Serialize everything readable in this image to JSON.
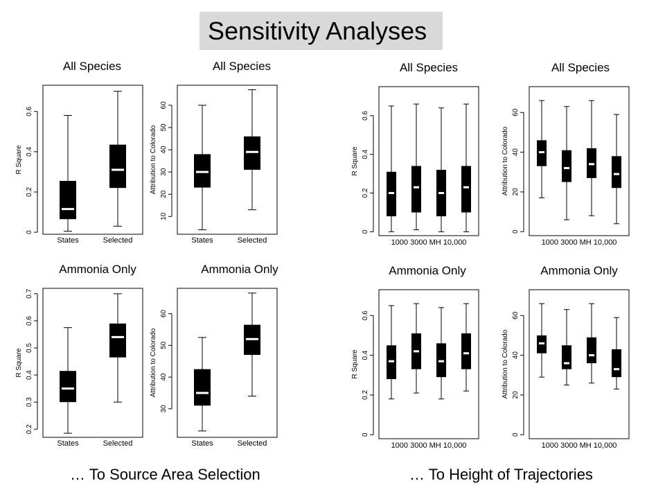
{
  "slide_title": "Sensitivity Analyses",
  "captions": {
    "left": "… To Source Area Selection",
    "right": "… To Height of Trajectories"
  },
  "colors": {
    "box_fill": "#000000",
    "median": "#ffffff",
    "title_bg": "#d9d9d9"
  },
  "chart_data": [
    {
      "type": "boxplot",
      "title": "All Species",
      "ylabel": "R Square",
      "categories": [
        "States",
        "Selected"
      ],
      "ylim": [
        -0.01,
        0.73
      ],
      "yticks": [
        0.0,
        0.2,
        0.4,
        0.6
      ],
      "boxes": [
        {
          "min": 0.005,
          "q1": 0.065,
          "median": 0.115,
          "q3": 0.255,
          "max": 0.58
        },
        {
          "min": 0.03,
          "q1": 0.22,
          "median": 0.31,
          "q3": 0.435,
          "max": 0.7
        }
      ]
    },
    {
      "type": "boxplot",
      "title": "All Species",
      "ylabel": "Attribution to Colorado",
      "categories": [
        "States",
        "Selected"
      ],
      "ylim": [
        2,
        69
      ],
      "yticks": [
        10,
        20,
        30,
        40,
        50,
        60
      ],
      "boxes": [
        {
          "min": 4,
          "q1": 23,
          "median": 30,
          "q3": 38,
          "max": 60
        },
        {
          "min": 13,
          "q1": 31,
          "median": 39,
          "q3": 46,
          "max": 67
        }
      ]
    },
    {
      "type": "boxplot",
      "title": "All Species",
      "ylabel": "R Square",
      "categories": [
        "1000",
        "3000",
        "MH",
        "10,000"
      ],
      "ylim": [
        -0.02,
        0.75
      ],
      "yticks": [
        0.0,
        0.2,
        0.4,
        0.6
      ],
      "boxes": [
        {
          "min": 0.0,
          "q1": 0.08,
          "median": 0.2,
          "q3": 0.31,
          "max": 0.65
        },
        {
          "min": 0.01,
          "q1": 0.1,
          "median": 0.23,
          "q3": 0.34,
          "max": 0.66
        },
        {
          "min": 0.0,
          "q1": 0.08,
          "median": 0.2,
          "q3": 0.32,
          "max": 0.64
        },
        {
          "min": 0.0,
          "q1": 0.1,
          "median": 0.23,
          "q3": 0.34,
          "max": 0.66
        }
      ]
    },
    {
      "type": "boxplot",
      "title": "All Species",
      "ylabel": "Attribution to Colorado",
      "categories": [
        "1000",
        "3000",
        "MH",
        "10,000"
      ],
      "ylim": [
        -2,
        73
      ],
      "yticks": [
        0,
        20,
        40,
        60
      ],
      "boxes": [
        {
          "min": 17,
          "q1": 33,
          "median": 40,
          "q3": 46,
          "max": 66
        },
        {
          "min": 6,
          "q1": 25,
          "median": 32,
          "q3": 41,
          "max": 63
        },
        {
          "min": 8,
          "q1": 27,
          "median": 34,
          "q3": 42,
          "max": 66
        },
        {
          "min": 4,
          "q1": 22,
          "median": 29,
          "q3": 38,
          "max": 59
        }
      ]
    },
    {
      "type": "boxplot",
      "title": "Ammonia Only",
      "ylabel": "R Square",
      "categories": [
        "States",
        "Selected"
      ],
      "ylim": [
        0.17,
        0.72
      ],
      "yticks": [
        0.2,
        0.3,
        0.4,
        0.5,
        0.6,
        0.7
      ],
      "boxes": [
        {
          "min": 0.185,
          "q1": 0.3,
          "median": 0.35,
          "q3": 0.415,
          "max": 0.575
        },
        {
          "min": 0.3,
          "q1": 0.465,
          "median": 0.54,
          "q3": 0.59,
          "max": 0.7
        }
      ]
    },
    {
      "type": "boxplot",
      "title": "Ammonia Only",
      "ylabel": "Attribution to Colorado",
      "categories": [
        "States",
        "Selected"
      ],
      "ylim": [
        21,
        68
      ],
      "yticks": [
        30,
        40,
        50,
        60
      ],
      "boxes": [
        {
          "min": 23,
          "q1": 31,
          "median": 35,
          "q3": 42.5,
          "max": 52.5
        },
        {
          "min": 34,
          "q1": 47,
          "median": 52,
          "q3": 56.5,
          "max": 66.5
        }
      ]
    },
    {
      "type": "boxplot",
      "title": "Ammonia Only",
      "ylabel": "R Square",
      "categories": [
        "1000",
        "3000",
        "MH",
        "10,000"
      ],
      "ylim": [
        -0.02,
        0.73
      ],
      "yticks": [
        0.0,
        0.2,
        0.4,
        0.6
      ],
      "boxes": [
        {
          "min": 0.18,
          "q1": 0.28,
          "median": 0.37,
          "q3": 0.45,
          "max": 0.65
        },
        {
          "min": 0.21,
          "q1": 0.33,
          "median": 0.42,
          "q3": 0.51,
          "max": 0.66
        },
        {
          "min": 0.18,
          "q1": 0.29,
          "median": 0.37,
          "q3": 0.46,
          "max": 0.64
        },
        {
          "min": 0.22,
          "q1": 0.33,
          "median": 0.41,
          "q3": 0.51,
          "max": 0.66
        }
      ]
    },
    {
      "type": "boxplot",
      "title": "Ammonia Only",
      "ylabel": "Attribution to Colorado",
      "categories": [
        "1000",
        "3000",
        "MH",
        "10,000"
      ],
      "ylim": [
        -2,
        73
      ],
      "yticks": [
        0,
        20,
        40,
        60
      ],
      "boxes": [
        {
          "min": 29,
          "q1": 41,
          "median": 46,
          "q3": 50,
          "max": 66
        },
        {
          "min": 25,
          "q1": 33,
          "median": 36,
          "q3": 45,
          "max": 63
        },
        {
          "min": 26,
          "q1": 36,
          "median": 40,
          "q3": 49,
          "max": 66
        },
        {
          "min": 23,
          "q1": 29,
          "median": 33,
          "q3": 43,
          "max": 59
        }
      ]
    }
  ]
}
